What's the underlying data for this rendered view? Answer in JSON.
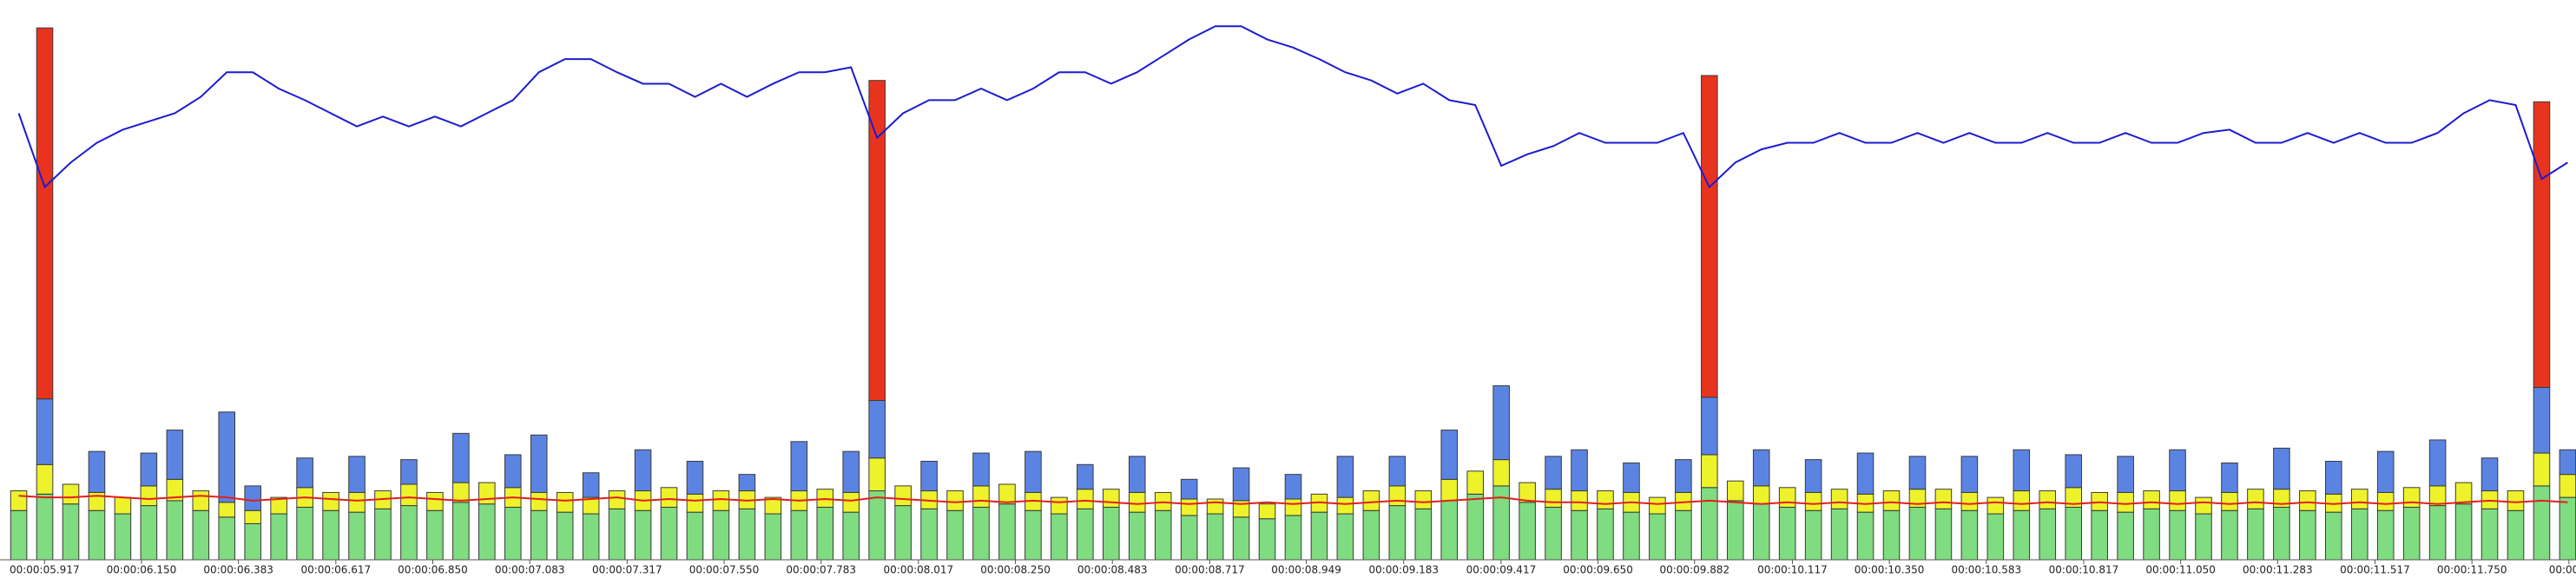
{
  "chart_data": {
    "type": "bar",
    "stacked": true,
    "xlim": [
      5.81,
      12.0
    ],
    "ylim": [
      0,
      341
    ],
    "xticks": [
      {
        "value": 5.917,
        "label": "00:00:05.917"
      },
      {
        "value": 6.15,
        "label": "00:00:06.150"
      },
      {
        "value": 6.383,
        "label": "00:00:06.383"
      },
      {
        "value": 6.617,
        "label": "00:00:06.617"
      },
      {
        "value": 6.85,
        "label": "00:00:06.850"
      },
      {
        "value": 7.083,
        "label": "00:00:07.083"
      },
      {
        "value": 7.317,
        "label": "00:00:07.317"
      },
      {
        "value": 7.55,
        "label": "00:00:07.550"
      },
      {
        "value": 7.783,
        "label": "00:00:07.783"
      },
      {
        "value": 8.017,
        "label": "00:00:08.017"
      },
      {
        "value": 8.25,
        "label": "00:00:08.250"
      },
      {
        "value": 8.483,
        "label": "00:00:08.483"
      },
      {
        "value": 8.717,
        "label": "00:00:08.717"
      },
      {
        "value": 8.949,
        "label": "00:00:08.949"
      },
      {
        "value": 9.183,
        "label": "00:00:09.183"
      },
      {
        "value": 9.417,
        "label": "00:00:09.417"
      },
      {
        "value": 9.65,
        "label": "00:00:09.650"
      },
      {
        "value": 9.882,
        "label": "00:00:09.882"
      },
      {
        "value": 10.117,
        "label": "00:00:10.117"
      },
      {
        "value": 10.35,
        "label": "00:00:10.350"
      },
      {
        "value": 10.583,
        "label": "00:00:10.583"
      },
      {
        "value": 10.817,
        "label": "00:00:10.817"
      },
      {
        "value": 11.05,
        "label": "00:00:11.050"
      },
      {
        "value": 11.283,
        "label": "00:00:11.283"
      },
      {
        "value": 11.517,
        "label": "00:00:11.517"
      },
      {
        "value": 11.75,
        "label": "00:00:11.750"
      },
      {
        "value": 11.983,
        "label": "00:00:1"
      }
    ],
    "x": [
      5.855,
      5.9175,
      5.98,
      6.0425,
      6.105,
      6.1675,
      6.23,
      6.2925,
      6.355,
      6.4175,
      6.48,
      6.5425,
      6.605,
      6.6675,
      6.73,
      6.7925,
      6.855,
      6.9175,
      6.98,
      7.0425,
      7.105,
      7.1675,
      7.23,
      7.2925,
      7.355,
      7.4175,
      7.48,
      7.5425,
      7.605,
      7.6675,
      7.73,
      7.7925,
      7.855,
      7.9175,
      7.98,
      8.0425,
      8.105,
      8.1675,
      8.23,
      8.2925,
      8.355,
      8.4175,
      8.48,
      8.5425,
      8.605,
      8.6675,
      8.73,
      8.7925,
      8.855,
      8.9175,
      8.98,
      9.0425,
      9.105,
      9.1675,
      9.23,
      9.2925,
      9.355,
      9.4175,
      9.48,
      9.5425,
      9.605,
      9.6675,
      9.73,
      9.7925,
      9.855,
      9.9175,
      9.98,
      10.0425,
      10.105,
      10.1675,
      10.23,
      10.2925,
      10.355,
      10.4175,
      10.48,
      10.5425,
      10.605,
      10.6675,
      10.73,
      10.7925,
      10.855,
      10.9175,
      10.98,
      11.0425,
      11.105,
      11.1675,
      11.23,
      11.2925,
      11.355,
      11.4175,
      11.48,
      11.5425,
      11.605,
      11.6675,
      11.73,
      11.7925,
      11.855,
      11.9175,
      11.98
    ],
    "series": [
      {
        "color": "#7fdc80",
        "values": [
          30,
          40,
          34,
          30,
          28,
          33,
          36,
          30,
          26,
          22,
          28,
          32,
          30,
          29,
          31,
          33,
          30,
          35,
          34,
          32,
          30,
          29,
          28,
          31,
          30,
          32,
          29,
          30,
          31,
          28,
          30,
          32,
          29,
          42,
          33,
          31,
          30,
          32,
          34,
          30,
          28,
          31,
          32,
          29,
          30,
          27,
          28,
          26,
          25,
          27,
          29,
          28,
          30,
          33,
          31,
          36,
          40,
          45,
          35,
          32,
          30,
          31,
          29,
          28,
          30,
          44,
          36,
          34,
          32,
          30,
          31,
          29,
          30,
          32,
          31,
          30,
          28,
          30,
          31,
          32,
          30,
          29,
          31,
          30,
          28,
          30,
          31,
          32,
          30,
          29,
          31,
          30,
          32,
          33,
          34,
          31,
          30,
          45,
          38
        ]
      },
      {
        "color": "#eef22a",
        "values": [
          12,
          18,
          12,
          11,
          10,
          12,
          13,
          12,
          9,
          8,
          10,
          12,
          11,
          12,
          11,
          13,
          11,
          12,
          13,
          12,
          11,
          12,
          10,
          11,
          12,
          12,
          11,
          12,
          11,
          10,
          12,
          11,
          12,
          20,
          12,
          11,
          12,
          13,
          12,
          11,
          10,
          12,
          11,
          12,
          11,
          10,
          9,
          10,
          9,
          10,
          11,
          10,
          12,
          12,
          11,
          13,
          14,
          16,
          12,
          11,
          12,
          11,
          12,
          10,
          11,
          20,
          12,
          11,
          12,
          11,
          12,
          11,
          12,
          11,
          12,
          11,
          10,
          12,
          11,
          12,
          11,
          12,
          11,
          12,
          10,
          11,
          12,
          11,
          12,
          11,
          12,
          11,
          12,
          12,
          13,
          11,
          12,
          20,
          14
        ]
      },
      {
        "color": "#5b84e2",
        "values": [
          0,
          40,
          0,
          25,
          0,
          20,
          30,
          0,
          55,
          15,
          0,
          18,
          0,
          22,
          0,
          15,
          0,
          30,
          0,
          20,
          35,
          0,
          15,
          0,
          25,
          0,
          20,
          0,
          10,
          0,
          30,
          0,
          25,
          35,
          0,
          18,
          0,
          20,
          0,
          25,
          0,
          15,
          0,
          22,
          0,
          12,
          0,
          20,
          0,
          15,
          0,
          25,
          0,
          18,
          0,
          30,
          0,
          45,
          0,
          20,
          25,
          0,
          18,
          0,
          20,
          35,
          0,
          22,
          0,
          20,
          0,
          25,
          0,
          20,
          0,
          22,
          0,
          25,
          0,
          20,
          0,
          22,
          0,
          25,
          0,
          18,
          0,
          25,
          0,
          20,
          0,
          25,
          0,
          28,
          0,
          20,
          0,
          40,
          15
        ]
      },
      {
        "color": "#e8341e",
        "values": [
          0,
          226,
          0,
          0,
          0,
          0,
          0,
          0,
          0,
          0,
          0,
          0,
          0,
          0,
          0,
          0,
          0,
          0,
          0,
          0,
          0,
          0,
          0,
          0,
          0,
          0,
          0,
          0,
          0,
          0,
          0,
          0,
          0,
          195,
          0,
          0,
          0,
          0,
          0,
          0,
          0,
          0,
          0,
          0,
          0,
          0,
          0,
          0,
          0,
          0,
          0,
          0,
          0,
          0,
          0,
          0,
          0,
          0,
          0,
          0,
          0,
          0,
          0,
          0,
          0,
          196,
          0,
          0,
          0,
          0,
          0,
          0,
          0,
          0,
          0,
          0,
          0,
          0,
          0,
          0,
          0,
          0,
          0,
          0,
          0,
          0,
          0,
          0,
          0,
          0,
          0,
          0,
          0,
          0,
          0,
          0,
          0,
          174,
          0
        ]
      }
    ],
    "lines": [
      {
        "color": "#1c1cd0",
        "values": [
          272,
          227,
          242,
          254,
          262,
          267,
          272,
          282,
          297,
          297,
          287,
          280,
          272,
          264,
          270,
          264,
          270,
          264,
          272,
          280,
          297,
          305,
          305,
          297,
          290,
          290,
          282,
          290,
          282,
          290,
          297,
          297,
          300,
          257,
          272,
          280,
          280,
          287,
          280,
          287,
          297,
          297,
          290,
          297,
          307,
          317,
          325,
          325,
          317,
          312,
          305,
          297,
          292,
          284,
          290,
          280,
          277,
          240,
          247,
          252,
          260,
          254,
          254,
          254,
          260,
          227,
          242,
          250,
          254,
          254,
          260,
          254,
          254,
          260,
          254,
          260,
          254,
          254,
          260,
          254,
          254,
          260,
          254,
          254,
          260,
          262,
          254,
          254,
          260,
          254,
          260,
          254,
          254,
          260,
          272,
          280,
          277,
          232,
          242
        ]
      },
      {
        "color": "#e0201c",
        "values": [
          39,
          38,
          38,
          39,
          38,
          37,
          38,
          39,
          38,
          36,
          37,
          38,
          37,
          36,
          37,
          38,
          37,
          36,
          37,
          38,
          37,
          36,
          37,
          38,
          36,
          37,
          36,
          37,
          36,
          37,
          36,
          37,
          36,
          38,
          37,
          36,
          35,
          36,
          35,
          36,
          35,
          36,
          35,
          34,
          35,
          34,
          35,
          34,
          35,
          34,
          35,
          34,
          35,
          36,
          35,
          36,
          37,
          38,
          36,
          35,
          35,
          34,
          35,
          34,
          35,
          36,
          35,
          34,
          35,
          34,
          35,
          34,
          35,
          34,
          35,
          34,
          35,
          34,
          35,
          34,
          35,
          34,
          35,
          34,
          35,
          34,
          35,
          34,
          35,
          34,
          35,
          34,
          35,
          34,
          35,
          36,
          35,
          36,
          35
        ]
      }
    ]
  }
}
